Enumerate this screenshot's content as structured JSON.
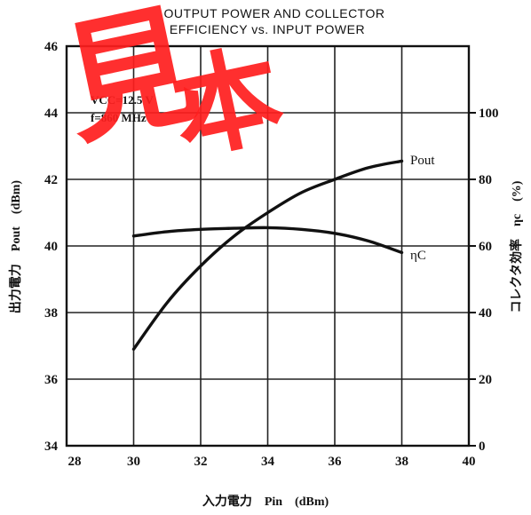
{
  "chart_data": {
    "type": "line",
    "title": "OUTPUT POWER AND COLLECTOR",
    "subtitle": "EFFICIENCY vs. INPUT POWER",
    "xlabel": "入力電力　Pin　(dBm)",
    "ylabel": "出力電力　Pout　(dBm)",
    "y2label": "コレクタ効率　ηc　(%)",
    "xlim": [
      28,
      40
    ],
    "ylim": [
      34,
      46
    ],
    "y2lim": [
      0,
      120
    ],
    "x_ticks": [
      "28",
      "30",
      "32",
      "34",
      "36",
      "38",
      "40"
    ],
    "y_ticks": [
      "34",
      "36",
      "38",
      "40",
      "42",
      "44",
      "46"
    ],
    "y2_ticks": [
      "0",
      "20",
      "40",
      "60",
      "80",
      "100"
    ],
    "conditions": [
      "VCC=12.5 V",
      "f=860 MHz"
    ],
    "grid": true,
    "series": [
      {
        "name": "Pout",
        "axis": "left",
        "x": [
          30,
          31,
          32,
          33,
          34,
          35,
          36,
          37,
          38
        ],
        "y": [
          36.9,
          38.3,
          39.4,
          40.3,
          41.0,
          41.6,
          42.0,
          42.35,
          42.55
        ]
      },
      {
        "name": "ηC",
        "axis": "right",
        "x": [
          30,
          31,
          32,
          33,
          34,
          35,
          36,
          37,
          38
        ],
        "y": [
          63.0,
          64.3,
          65.0,
          65.3,
          65.5,
          65.0,
          63.8,
          61.5,
          58.0
        ]
      }
    ],
    "watermark": "見本"
  }
}
